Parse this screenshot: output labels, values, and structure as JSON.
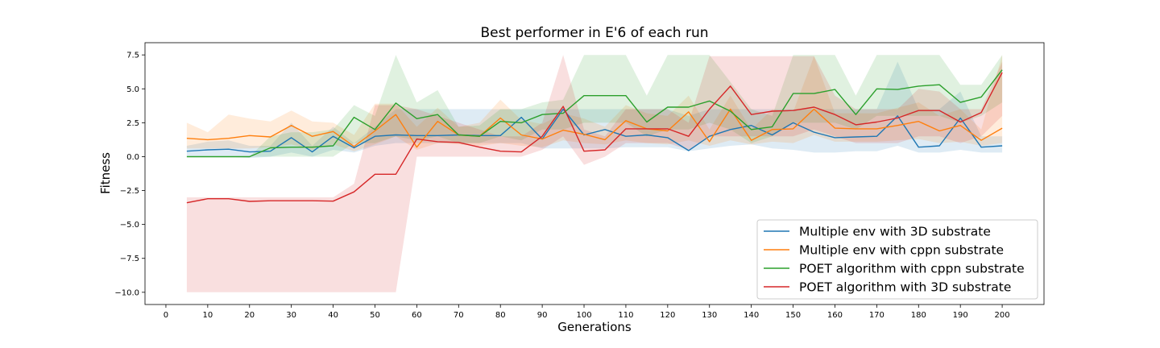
{
  "chart_data": {
    "type": "line",
    "title": "Best performer in E'6 of each run",
    "xlabel": "Generations",
    "ylabel": "Fitness",
    "xlim": [
      -5,
      210
    ],
    "ylim": [
      -10.9,
      8.4
    ],
    "xticks": [
      0,
      10,
      20,
      30,
      40,
      50,
      60,
      70,
      80,
      90,
      100,
      110,
      120,
      130,
      140,
      150,
      160,
      170,
      180,
      190,
      200
    ],
    "yticks": [
      7.5,
      5.0,
      2.5,
      0.0,
      -2.5,
      -5.0,
      -7.5,
      -10.0
    ],
    "ytick_labels": [
      "7.5",
      "5.0",
      "2.5",
      "0.0",
      "−2.5",
      "−5.0",
      "−7.5",
      "−10.0"
    ],
    "x": [
      5,
      10,
      15,
      20,
      25,
      30,
      35,
      40,
      45,
      50,
      55,
      60,
      65,
      70,
      75,
      80,
      85,
      90,
      95,
      100,
      105,
      110,
      115,
      120,
      125,
      130,
      135,
      140,
      145,
      150,
      155,
      160,
      165,
      170,
      175,
      180,
      185,
      190,
      195,
      200
    ],
    "legend_position": "lower-right",
    "series": [
      {
        "name": "Multiple env  with 3D substrate",
        "color": "#1f77b4",
        "values": [
          0.4,
          0.5,
          0.55,
          0.35,
          0.4,
          1.4,
          0.35,
          1.5,
          0.65,
          1.5,
          1.6,
          1.55,
          1.55,
          1.6,
          1.55,
          1.55,
          2.9,
          1.3,
          3.5,
          1.6,
          2.0,
          1.5,
          1.6,
          1.4,
          0.45,
          1.5,
          2.0,
          2.3,
          1.6,
          2.5,
          1.8,
          1.4,
          1.45,
          1.5,
          3.0,
          0.7,
          0.8,
          2.85,
          0.7,
          0.8
        ],
        "lower": [
          0.0,
          0.0,
          0.0,
          -0.1,
          0.0,
          0.3,
          0.0,
          0.5,
          0.3,
          0.8,
          1.0,
          1.0,
          1.0,
          1.0,
          1.0,
          1.0,
          1.0,
          0.6,
          0.6,
          0.6,
          0.6,
          0.7,
          0.7,
          0.7,
          0.4,
          0.6,
          0.8,
          0.9,
          0.6,
          0.5,
          0.3,
          0.3,
          0.4,
          0.4,
          0.8,
          0.3,
          0.3,
          0.5,
          0.3,
          0.3
        ],
        "upper": [
          0.8,
          1.1,
          1.2,
          0.8,
          0.8,
          2.5,
          0.8,
          2.2,
          1.0,
          2.2,
          3.5,
          3.5,
          3.5,
          3.5,
          3.5,
          3.5,
          3.5,
          3.5,
          3.5,
          3.5,
          3.5,
          3.5,
          3.5,
          3.5,
          3.0,
          3.5,
          3.5,
          3.5,
          3.5,
          3.5,
          3.5,
          3.5,
          3.5,
          3.5,
          7.0,
          3.5,
          3.5,
          4.8,
          1.5,
          1.5
        ]
      },
      {
        "name": "Multiple env  with cppn substrate",
        "color": "#ff7f0e",
        "values": [
          1.35,
          1.25,
          1.35,
          1.55,
          1.45,
          2.3,
          1.5,
          1.85,
          0.75,
          1.9,
          3.1,
          0.7,
          2.6,
          1.6,
          1.5,
          2.85,
          1.6,
          1.3,
          1.95,
          1.65,
          1.25,
          2.65,
          2.05,
          1.9,
          3.3,
          1.1,
          3.5,
          1.2,
          2.0,
          2.05,
          3.5,
          2.1,
          2.05,
          2.05,
          2.3,
          2.6,
          1.9,
          2.3,
          1.2,
          2.1
        ],
        "lower": [
          0.6,
          0.6,
          0.6,
          0.6,
          0.7,
          0.9,
          0.5,
          0.9,
          0.4,
          0.9,
          1.5,
          0.5,
          1.0,
          0.9,
          0.8,
          1.0,
          0.8,
          0.7,
          1.2,
          1.0,
          0.9,
          1.2,
          1.0,
          0.9,
          1.2,
          0.8,
          1.2,
          0.9,
          1.1,
          1.0,
          1.6,
          1.1,
          1.1,
          1.1,
          1.2,
          1.3,
          1.0,
          1.1,
          0.8,
          1.0
        ],
        "upper": [
          2.5,
          1.8,
          3.1,
          2.8,
          2.6,
          3.4,
          2.6,
          2.5,
          1.6,
          3.9,
          3.9,
          2.2,
          3.6,
          2.2,
          2.5,
          4.2,
          2.7,
          2.4,
          3.2,
          2.8,
          2.2,
          3.8,
          3.2,
          3.0,
          4.5,
          2.0,
          4.5,
          2.0,
          3.5,
          3.3,
          7.4,
          3.2,
          3.2,
          3.2,
          3.6,
          4.0,
          3.0,
          3.5,
          2.0,
          7.5
        ]
      },
      {
        "name": "POET algorithm with cppn substrate",
        "color": "#2ca02c",
        "values": [
          0.0,
          0.0,
          0.0,
          0.0,
          0.65,
          0.7,
          0.7,
          0.8,
          2.9,
          2.0,
          3.95,
          2.8,
          3.1,
          1.6,
          1.5,
          2.6,
          2.5,
          3.1,
          3.2,
          4.5,
          4.5,
          4.5,
          2.55,
          3.65,
          3.65,
          4.1,
          3.35,
          2.0,
          2.2,
          4.65,
          4.65,
          4.95,
          3.1,
          5.0,
          4.95,
          5.2,
          5.3,
          4.0,
          4.4,
          6.4
        ],
        "lower": [
          0.0,
          0.0,
          0.0,
          0.0,
          0.0,
          0.0,
          0.0,
          0.0,
          1.0,
          1.0,
          1.5,
          1.2,
          1.5,
          1.0,
          1.0,
          1.5,
          1.2,
          2.0,
          2.0,
          2.5,
          2.5,
          2.5,
          1.5,
          2.0,
          2.0,
          2.5,
          2.0,
          1.0,
          1.5,
          2.5,
          2.5,
          2.5,
          2.0,
          3.0,
          3.0,
          3.0,
          3.0,
          2.5,
          3.0,
          4.0
        ],
        "upper": [
          0.0,
          0.0,
          0.0,
          0.0,
          1.5,
          1.8,
          1.8,
          2.0,
          3.8,
          3.0,
          7.5,
          4.0,
          4.9,
          2.2,
          2.3,
          3.5,
          3.5,
          4.0,
          4.2,
          7.5,
          7.5,
          7.5,
          4.5,
          7.5,
          7.5,
          7.5,
          5.5,
          3.5,
          3.0,
          7.5,
          7.5,
          7.5,
          4.5,
          7.5,
          7.5,
          7.5,
          7.5,
          5.3,
          5.3,
          7.5
        ]
      },
      {
        "name": "POET algorithm with 3D substrate",
        "color": "#d62728",
        "values": [
          -3.4,
          -3.1,
          -3.1,
          -3.3,
          -3.25,
          -3.25,
          -3.25,
          -3.28,
          -2.6,
          -1.3,
          -1.3,
          1.3,
          1.1,
          1.05,
          0.7,
          0.4,
          0.35,
          1.5,
          3.7,
          0.4,
          0.5,
          2.05,
          2.05,
          2.05,
          1.5,
          3.5,
          5.2,
          3.1,
          3.35,
          3.4,
          3.65,
          3.1,
          2.35,
          2.55,
          2.85,
          3.4,
          3.4,
          2.55,
          3.25,
          6.2
        ],
        "lower": [
          -10.0,
          -10.0,
          -10.0,
          -10.0,
          -10.0,
          -10.0,
          -10.0,
          -10.0,
          -10.0,
          -10.0,
          -10.0,
          0.0,
          0.0,
          0.0,
          0.0,
          0.0,
          0.0,
          0.5,
          1.5,
          -0.6,
          0.0,
          1.0,
          1.0,
          1.0,
          0.5,
          1.5,
          1.5,
          1.5,
          1.5,
          1.5,
          2.0,
          1.5,
          1.0,
          1.0,
          1.0,
          1.5,
          1.5,
          1.0,
          1.5,
          3.0
        ],
        "upper": [
          -3.0,
          -3.0,
          -3.0,
          -3.0,
          -3.0,
          -3.0,
          -3.0,
          -3.0,
          -2.0,
          3.8,
          3.8,
          3.5,
          3.0,
          2.5,
          2.0,
          1.5,
          1.5,
          2.5,
          7.5,
          2.0,
          1.5,
          3.5,
          3.5,
          3.5,
          2.5,
          7.4,
          7.4,
          7.4,
          7.4,
          7.4,
          7.4,
          4.5,
          3.5,
          3.5,
          3.5,
          5.0,
          4.8,
          3.5,
          3.5,
          7.0
        ]
      }
    ]
  }
}
